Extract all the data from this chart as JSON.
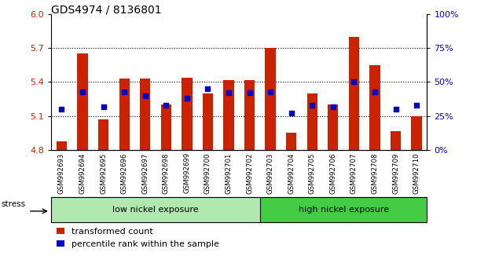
{
  "title": "GDS4974 / 8136801",
  "samples": [
    "GSM992693",
    "GSM992694",
    "GSM992695",
    "GSM992696",
    "GSM992697",
    "GSM992698",
    "GSM992699",
    "GSM992700",
    "GSM992701",
    "GSM992702",
    "GSM992703",
    "GSM992704",
    "GSM992705",
    "GSM992706",
    "GSM992707",
    "GSM992708",
    "GSM992709",
    "GSM992710"
  ],
  "red_values": [
    4.88,
    5.65,
    5.07,
    5.43,
    5.43,
    5.2,
    5.44,
    5.3,
    5.42,
    5.42,
    5.7,
    4.95,
    5.3,
    5.2,
    5.8,
    5.55,
    4.97,
    5.1
  ],
  "blue_pcts": [
    30,
    43,
    32,
    43,
    40,
    33,
    38,
    45,
    42,
    42,
    43,
    27,
    33,
    32,
    50,
    43,
    30,
    33
  ],
  "ylim_left": [
    4.8,
    6.0
  ],
  "ylim_right": [
    0,
    100
  ],
  "yticks_left": [
    4.8,
    5.1,
    5.4,
    5.7,
    6.0
  ],
  "yticks_right": [
    0,
    25,
    50,
    75,
    100
  ],
  "ytick_labels_right": [
    "0%",
    "25%",
    "50%",
    "75%",
    "100%"
  ],
  "bar_color": "#cc2200",
  "blue_color": "#0000cc",
  "base_value": 4.8,
  "group1_label": "low nickel exposure",
  "group2_label": "high nickel exposure",
  "group1_n": 10,
  "group2_n": 8,
  "group1_color": "#b0e8b0",
  "group2_color": "#44cc44",
  "stress_label": "stress",
  "legend_red": "transformed count",
  "legend_blue": "percentile rank within the sample",
  "title_fontsize": 10,
  "tick_color_left": "#cc2200",
  "tick_color_right": "#0000cc",
  "bar_width": 0.5,
  "n": 18,
  "dotted_lines": [
    5.1,
    5.4,
    5.7
  ],
  "xtick_bg": "#cccccc",
  "cell_border": "#aaaaaa"
}
